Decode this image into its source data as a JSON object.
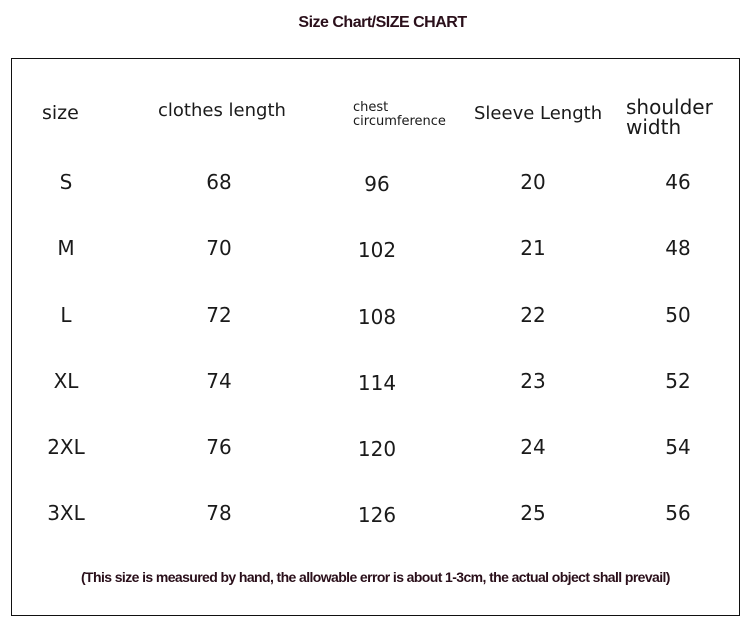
{
  "title": "Size Chart/SIZE CHART",
  "table": {
    "headers": [
      "size",
      "clothes length",
      "chest circumference",
      "Sleeve Length",
      "shoulder width"
    ],
    "rows": [
      [
        "S",
        "68",
        "96",
        "20",
        "46"
      ],
      [
        "M",
        "70",
        "102",
        "21",
        "48"
      ],
      [
        "L",
        "72",
        "108",
        "22",
        "50"
      ],
      [
        "XL",
        "74",
        "114",
        "23",
        "52"
      ],
      [
        "2XL",
        "76",
        "120",
        "24",
        "54"
      ],
      [
        "3XL",
        "78",
        "126",
        "25",
        "56"
      ]
    ]
  },
  "note": "(This size is measured by hand, the allowable error is about 1-3cm, the actual object shall prevail)"
}
